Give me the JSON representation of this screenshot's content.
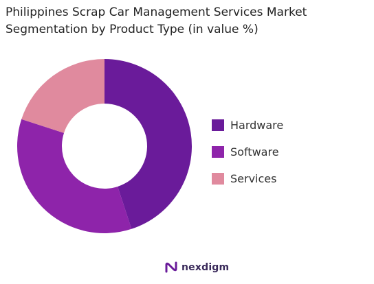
{
  "title_line1": "Philippines Scrap Car Management Services Market",
  "title_line2": "Segmentation by Product Type (in value %)",
  "brand": "nexdigm",
  "chart_data": {
    "type": "pie",
    "subtype": "donut",
    "categories": [
      "Hardware",
      "Software",
      "Services"
    ],
    "values": [
      45,
      35,
      20
    ],
    "unit": "%",
    "colors": [
      "#6a1b9a",
      "#8e24aa",
      "#e08a9e"
    ],
    "legend_position": "right"
  }
}
